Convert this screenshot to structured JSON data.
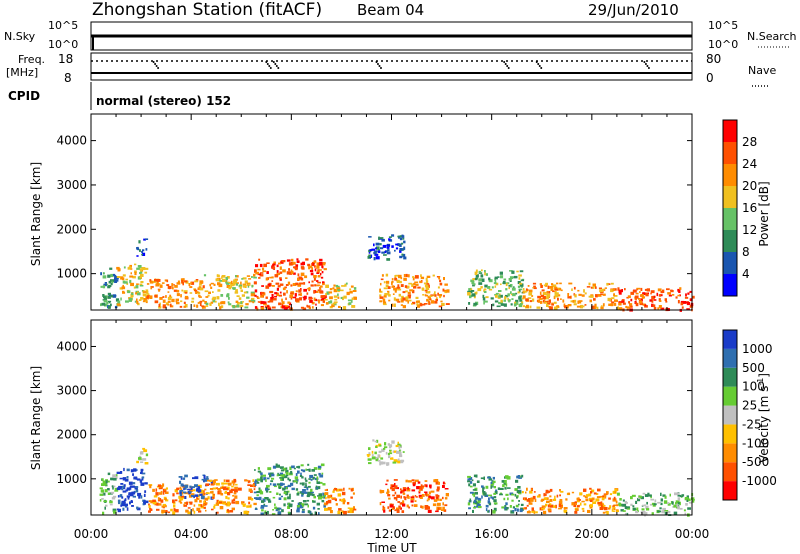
{
  "header": {
    "station": "Zhongshan Station (fitACF)",
    "beam": "Beam 04",
    "date": "29/Jun/2010"
  },
  "top_panels": {
    "nsky_label": "N.Sky",
    "nsky_ticks": [
      "10^5",
      "10^0"
    ],
    "nsearch_label": "N.Search",
    "nsearch_ticks": [
      "10^5",
      "10^0"
    ],
    "freq_label": "Freq.",
    "freq_unit": "[MHz]",
    "freq_ticks": [
      "18",
      "8"
    ],
    "nave_label": "Nave",
    "nave_ticks": [
      "80",
      "0"
    ],
    "cpid_label": "CPID",
    "cpid_text": "normal (stereo) 152"
  },
  "axes": {
    "ylabel": "Slant Range [km]",
    "xlabel": "Time UT",
    "yticks": [
      1000,
      2000,
      3000,
      4000
    ],
    "xticks": [
      "00:00",
      "04:00",
      "08:00",
      "12:00",
      "16:00",
      "20:00",
      "00:00"
    ]
  },
  "power_colorbar": {
    "label": "Power [dB]",
    "ticks": [
      "4",
      "8",
      "12",
      "16",
      "20",
      "24",
      "28"
    ],
    "colors": [
      "#0000ff",
      "#1a56b0",
      "#2e8b57",
      "#66c266",
      "#f0c020",
      "#ff8c00",
      "#ff5000",
      "#ff0000"
    ]
  },
  "velocity_colorbar": {
    "label": "Velocity [m s",
    "label_sup": "-1",
    "label_end": "]",
    "ticks": [
      "1000",
      "500",
      "100",
      "25",
      "-25",
      "-100",
      "-500",
      "-1000"
    ],
    "colors": [
      "#1a3cc8",
      "#2f6fb0",
      "#2e8b57",
      "#66cc33",
      "#c0c0c0",
      "#ffc000",
      "#ff8c00",
      "#ff5000",
      "#ff0000"
    ]
  },
  "chart_data": [
    {
      "type": "heatmap",
      "title": "Power",
      "xlabel": "Time UT",
      "ylabel": "Slant Range [km]",
      "xlim": [
        "00:00",
        "24:00"
      ],
      "ylim": [
        180,
        4600
      ],
      "colorbar": "Power [dB]",
      "patches": [
        {
          "t0": 0.3,
          "t1": 1.0,
          "r0": 250,
          "r1": 1150,
          "level": 2
        },
        {
          "t0": 1.0,
          "t1": 2.2,
          "r0": 300,
          "r1": 1250,
          "level": 4
        },
        {
          "t0": 1.8,
          "t1": 2.2,
          "r0": 1380,
          "r1": 1800,
          "level": 1
        },
        {
          "t0": 2.2,
          "t1": 4.5,
          "r0": 250,
          "r1": 900,
          "level": 5
        },
        {
          "t0": 4.5,
          "t1": 6.5,
          "r0": 250,
          "r1": 1000,
          "level": 4
        },
        {
          "t0": 6.5,
          "t1": 9.3,
          "r0": 220,
          "r1": 1350,
          "level": 6
        },
        {
          "t0": 9.3,
          "t1": 10.5,
          "r0": 250,
          "r1": 800,
          "level": 4
        },
        {
          "t0": 11.0,
          "t1": 12.5,
          "r0": 1350,
          "r1": 1900,
          "level": 1
        },
        {
          "t0": 11.5,
          "t1": 14.2,
          "r0": 280,
          "r1": 1000,
          "level": 5
        },
        {
          "t0": 15.0,
          "t1": 17.2,
          "r0": 280,
          "r1": 1100,
          "level": 3
        },
        {
          "t0": 17.2,
          "t1": 21.0,
          "r0": 250,
          "r1": 800,
          "level": 5
        },
        {
          "t0": 21.0,
          "t1": 24.0,
          "r0": 200,
          "r1": 700,
          "level": 6
        }
      ]
    },
    {
      "type": "heatmap",
      "title": "Velocity",
      "xlabel": "Time UT",
      "ylabel": "Slant Range [km]",
      "xlim": [
        "00:00",
        "24:00"
      ],
      "ylim": [
        180,
        4600
      ],
      "colorbar": "Velocity [m s-1]",
      "patches": [
        {
          "t0": 0.3,
          "t1": 1.0,
          "r0": 250,
          "r1": 1150,
          "level": 3
        },
        {
          "t0": 1.0,
          "t1": 2.2,
          "r0": 300,
          "r1": 1250,
          "level": 0
        },
        {
          "t0": 1.8,
          "t1": 2.2,
          "r0": 1380,
          "r1": 1800,
          "level": 4
        },
        {
          "t0": 2.2,
          "t1": 4.5,
          "r0": 250,
          "r1": 900,
          "level": 6
        },
        {
          "t0": 3.5,
          "t1": 4.8,
          "r0": 600,
          "r1": 1100,
          "level": 0
        },
        {
          "t0": 4.5,
          "t1": 6.5,
          "r0": 250,
          "r1": 1000,
          "level": 6
        },
        {
          "t0": 6.5,
          "t1": 9.3,
          "r0": 220,
          "r1": 1350,
          "level": 2
        },
        {
          "t0": 9.3,
          "t1": 10.5,
          "r0": 250,
          "r1": 800,
          "level": 6
        },
        {
          "t0": 11.0,
          "t1": 12.5,
          "r0": 1350,
          "r1": 1900,
          "level": 4
        },
        {
          "t0": 11.5,
          "t1": 14.2,
          "r0": 280,
          "r1": 1000,
          "level": 7
        },
        {
          "t0": 15.0,
          "t1": 17.2,
          "r0": 280,
          "r1": 1100,
          "level": 2
        },
        {
          "t0": 17.2,
          "t1": 21.0,
          "r0": 250,
          "r1": 800,
          "level": 6
        },
        {
          "t0": 21.0,
          "t1": 24.0,
          "r0": 200,
          "r1": 700,
          "level": 3
        }
      ]
    }
  ]
}
